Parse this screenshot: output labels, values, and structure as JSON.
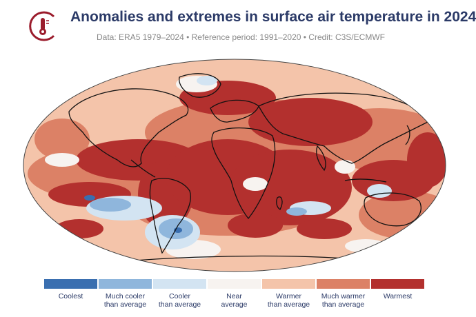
{
  "title": "Anomalies and extremes in surface air temperature in 2024",
  "subtitle": "Data: ERA5 1979–2024 • Reference period: 1991–2020 • Credit: C3S/ECMWF",
  "logo": {
    "icon": "thermometer-icon",
    "color": "#9b1c2c"
  },
  "colors": {
    "coolest": "#3a6fb0",
    "much_cooler": "#8fb6dc",
    "cooler": "#d3e4f2",
    "near": "#f7f3f0",
    "warmer": "#f4c4aa",
    "much_warmer": "#dc8166",
    "warmest": "#b3302e",
    "land_outline": "#111111"
  },
  "legend": [
    {
      "label": "Coolest",
      "color": "#3a6fb0"
    },
    {
      "label": "Much cooler\nthan average",
      "color": "#8fb6dc"
    },
    {
      "label": "Cooler\nthan average",
      "color": "#d3e4f2"
    },
    {
      "label": "Near\naverage",
      "color": "#f7f3f0"
    },
    {
      "label": "Warmer\nthan average",
      "color": "#f4c4aa"
    },
    {
      "label": "Much warmer\nthan average",
      "color": "#dc8166"
    },
    {
      "label": "Warmest",
      "color": "#b3302e"
    }
  ]
}
